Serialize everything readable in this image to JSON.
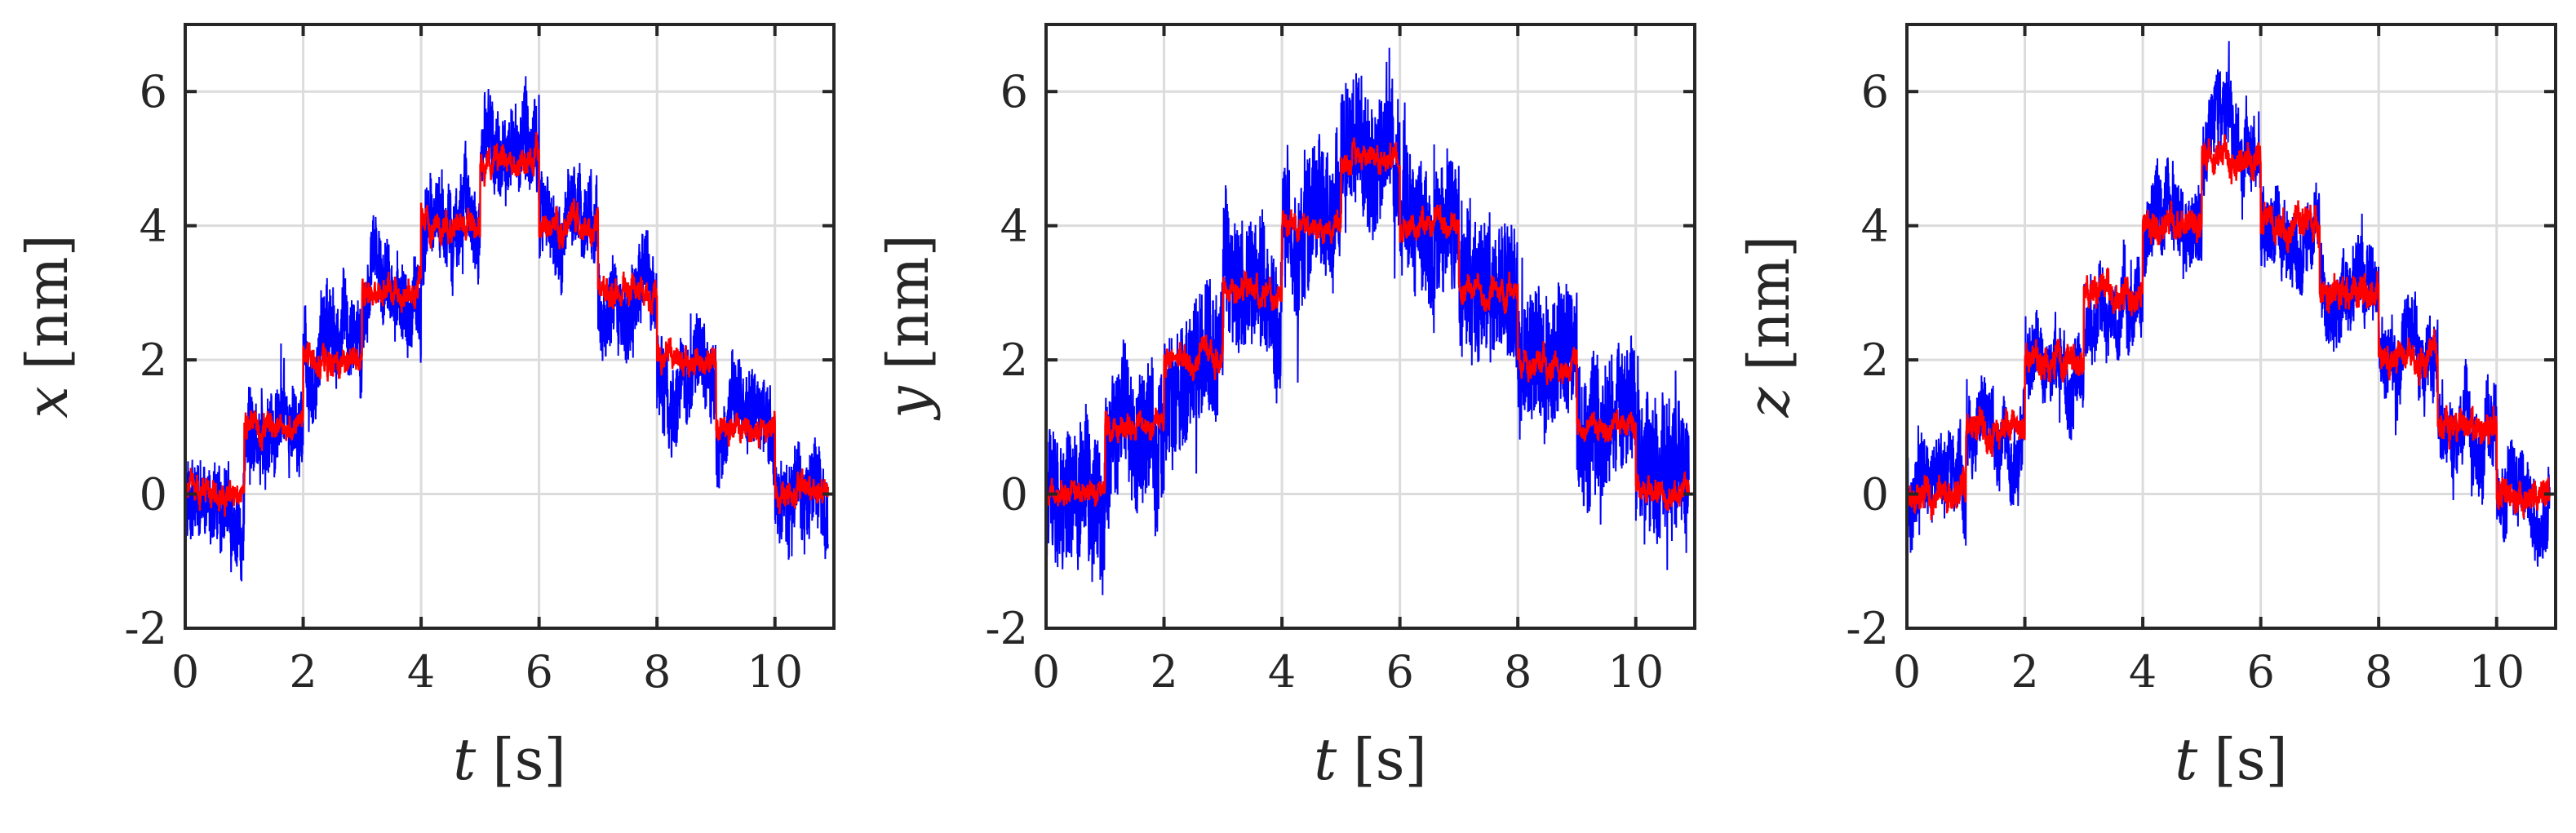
{
  "chart_data": [
    {
      "type": "line",
      "xlabel_var": "t",
      "xlabel_unit": "[s]",
      "ylabel_var": "x",
      "ylabel_unit": "[nm]",
      "xlim": [
        0,
        11
      ],
      "ylim": [
        -2,
        7
      ],
      "xticks": [
        0,
        2,
        4,
        6,
        8,
        10
      ],
      "yticks": [
        -2,
        0,
        2,
        4,
        6
      ],
      "grid": true,
      "colors": {
        "raw": "#0000ff",
        "filtered": "#ff0000"
      },
      "noise_amplitude": 0.55,
      "filtered_noise": 0.12,
      "steps": [
        {
          "t0": 0,
          "t1": 1,
          "level": 0
        },
        {
          "t0": 1,
          "t1": 2,
          "level": 1
        },
        {
          "t0": 2,
          "t1": 3,
          "level": 2
        },
        {
          "t0": 3,
          "t1": 4,
          "level": 3
        },
        {
          "t0": 4,
          "t1": 5,
          "level": 4
        },
        {
          "t0": 5,
          "t1": 6,
          "level": 5
        },
        {
          "t0": 6,
          "t1": 7,
          "level": 4
        },
        {
          "t0": 7,
          "t1": 8,
          "level": 3
        },
        {
          "t0": 8,
          "t1": 9,
          "level": 2
        },
        {
          "t0": 9,
          "t1": 10,
          "level": 1
        },
        {
          "t0": 10,
          "t1": 10.9,
          "level": 0
        }
      ]
    },
    {
      "type": "line",
      "xlabel_var": "t",
      "xlabel_unit": "[s]",
      "ylabel_var": "y",
      "ylabel_unit": "[nm]",
      "xlim": [
        0,
        11
      ],
      "ylim": [
        -2,
        7
      ],
      "xticks": [
        0,
        2,
        4,
        6,
        8,
        10
      ],
      "yticks": [
        -2,
        0,
        2,
        4,
        6
      ],
      "grid": true,
      "colors": {
        "raw": "#0000ff",
        "filtered": "#ff0000"
      },
      "noise_amplitude": 0.95,
      "filtered_noise": 0.1,
      "steps": [
        {
          "t0": 0,
          "t1": 1,
          "level": 0
        },
        {
          "t0": 1,
          "t1": 2,
          "level": 1
        },
        {
          "t0": 2,
          "t1": 3,
          "level": 2
        },
        {
          "t0": 3,
          "t1": 4,
          "level": 3
        },
        {
          "t0": 4,
          "t1": 5,
          "level": 4
        },
        {
          "t0": 5,
          "t1": 6,
          "level": 5
        },
        {
          "t0": 6,
          "t1": 7,
          "level": 4
        },
        {
          "t0": 7,
          "t1": 8,
          "level": 3
        },
        {
          "t0": 8,
          "t1": 9,
          "level": 2
        },
        {
          "t0": 9,
          "t1": 10,
          "level": 1
        },
        {
          "t0": 10,
          "t1": 10.9,
          "level": 0
        }
      ]
    },
    {
      "type": "line",
      "xlabel_var": "t",
      "xlabel_unit": "[s]",
      "ylabel_var": "z",
      "ylabel_unit": "[nm]",
      "xlim": [
        0,
        11
      ],
      "ylim": [
        -2,
        7
      ],
      "xticks": [
        0,
        2,
        4,
        6,
        8,
        10
      ],
      "yticks": [
        -2,
        0,
        2,
        4,
        6
      ],
      "grid": true,
      "colors": {
        "raw": "#0000ff",
        "filtered": "#ff0000"
      },
      "noise_amplitude": 0.5,
      "filtered_noise": 0.16,
      "steps": [
        {
          "t0": 0,
          "t1": 1,
          "level": 0
        },
        {
          "t0": 1,
          "t1": 2,
          "level": 1
        },
        {
          "t0": 2,
          "t1": 3,
          "level": 2
        },
        {
          "t0": 3,
          "t1": 4,
          "level": 3
        },
        {
          "t0": 4,
          "t1": 5,
          "level": 4
        },
        {
          "t0": 5,
          "t1": 6,
          "level": 5
        },
        {
          "t0": 6,
          "t1": 7,
          "level": 4
        },
        {
          "t0": 7,
          "t1": 8,
          "level": 3
        },
        {
          "t0": 8,
          "t1": 9,
          "level": 2
        },
        {
          "t0": 9,
          "t1": 10,
          "level": 1
        },
        {
          "t0": 10,
          "t1": 10.9,
          "level": 0
        }
      ]
    }
  ]
}
